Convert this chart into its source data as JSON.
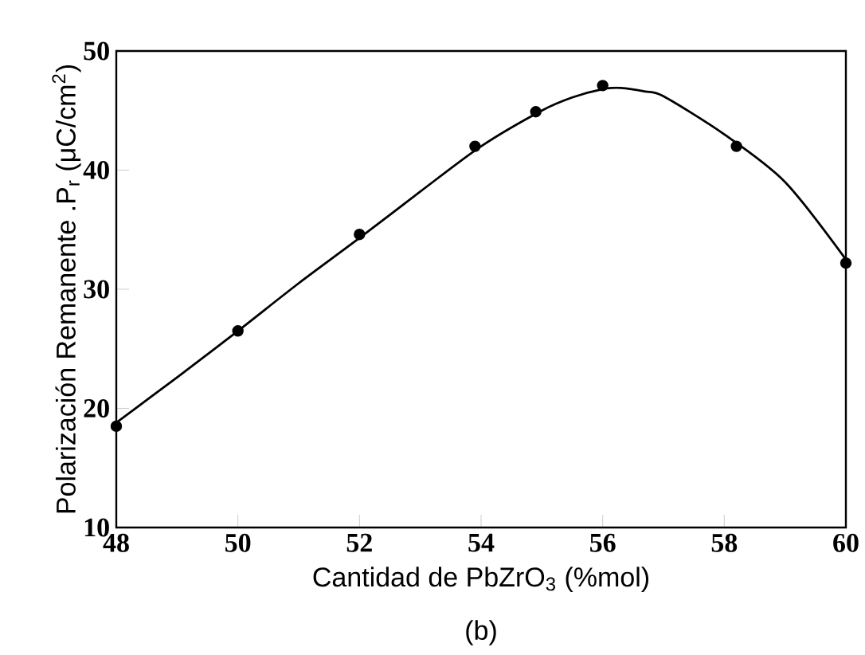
{
  "chart_data": {
    "type": "scatter",
    "xlabel": "Cantidad de PbZrO$_{3}$ (%mol)",
    "ylabel": "Polarización Remanente .P$_{r}$  (μC/cm$^{2}$)",
    "annotations": [
      "(b)"
    ],
    "x": [
      48,
      50,
      52,
      53.9,
      54.9,
      56,
      58.2,
      60
    ],
    "series": [
      {
        "color": "#000000",
        "marker": "circle",
        "values": [
          18.5,
          26.5,
          34.6,
          42,
          44.9,
          47.1,
          42,
          32.2
        ]
      },
      {
        "type": "line",
        "color": "#000000",
        "line_style": "solid",
        "x": [
          48,
          49,
          50,
          51,
          52,
          53,
          54,
          55,
          55.5,
          56,
          56.3,
          56.7,
          57,
          58,
          59,
          60
        ],
        "values": [
          18.8,
          22.6,
          26.5,
          30.5,
          34.3,
          38.2,
          42,
          45,
          46.1,
          46.8,
          46.9,
          46.6,
          46.2,
          43,
          39,
          32.5
        ]
      }
    ],
    "xlim": [
      48,
      60
    ],
    "ylim": [
      10,
      50
    ],
    "xticks": [
      48,
      50,
      52,
      54,
      56,
      58,
      60
    ],
    "yticks": [
      10,
      20,
      30,
      40,
      50
    ],
    "grid": false
  }
}
